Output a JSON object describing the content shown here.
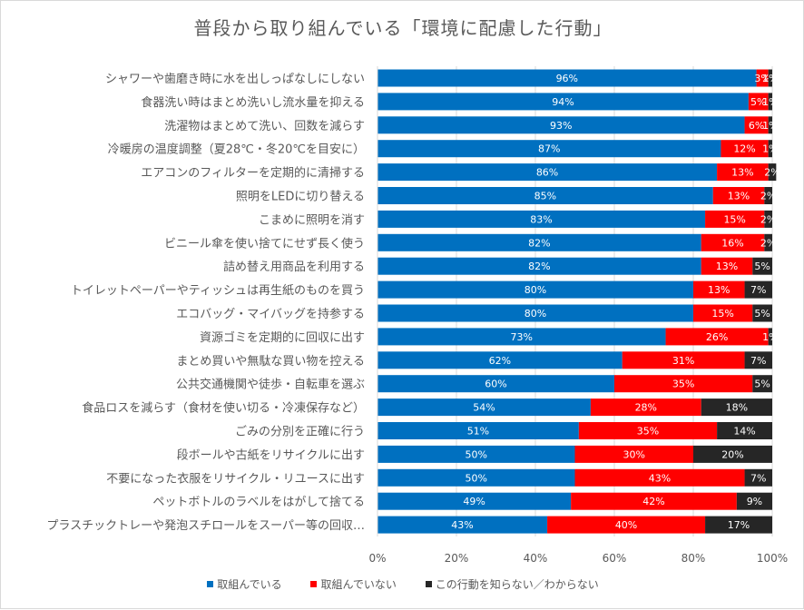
{
  "colors": {
    "series_1": "#0070C0",
    "series_2": "#FF0000",
    "series_3": "#262626",
    "text": "#595959",
    "gridline": "#D9D9D9"
  },
  "chart_data": {
    "type": "bar",
    "orientation": "horizontal",
    "stacked": true,
    "title": "普段から取り組んでいる「環境に配慮した行動」",
    "categories": [
      "シャワーや歯磨き時に水を出しっぱなしにしない",
      "食器洗い時はまとめ洗いし流水量を抑える",
      "洗濯物はまとめて洗い、回数を減らす",
      "冷暖房の温度調整（夏28℃・冬20℃を目安に）",
      "エアコンのフィルターを定期的に清掃する",
      "照明をLEDに切り替える",
      "こまめに照明を消す",
      "ビニール傘を使い捨てにせず長く使う",
      "詰め替え用商品を利用する",
      "トイレットペーパーやティッシュは再生紙のものを買う",
      "エコバッグ・マイバッグを持参する",
      "資源ゴミを定期的に回収に出す",
      "まとめ買いや無駄な買い物を控える",
      "公共交通機関や徒歩・自転車を選ぶ",
      "食品ロスを減らす（食材を使い切る・冷凍保存など）",
      "ごみの分別を正確に行う",
      "段ボールや古紙をリサイクルに出す",
      "不要になった衣服をリサイクル・リユースに出す",
      "ペットボトルのラベルをはがして捨てる",
      "プラスチックトレーや発泡スチロールをスーパー等の回収…"
    ],
    "series": [
      {
        "name": "取組んでいる",
        "values": [
          96,
          94,
          93,
          87,
          86,
          85,
          83,
          82,
          82,
          80,
          80,
          73,
          62,
          60,
          54,
          51,
          50,
          50,
          49,
          43
        ]
      },
      {
        "name": "取組んでいない",
        "values": [
          3,
          5,
          6,
          12,
          13,
          13,
          15,
          16,
          13,
          13,
          15,
          26,
          31,
          35,
          28,
          35,
          30,
          43,
          42,
          40
        ]
      },
      {
        "name": "この行動を知らない／わからない",
        "values": [
          1,
          1,
          1,
          1,
          2,
          2,
          2,
          2,
          5,
          7,
          5,
          1,
          7,
          5,
          18,
          14,
          20,
          7,
          9,
          17
        ]
      }
    ],
    "value_labels": [
      [
        "96%",
        "94%",
        "93%",
        "87%",
        "86%",
        "85%",
        "83%",
        "82%",
        "82%",
        "80%",
        "80%",
        "73%",
        "62%",
        "60%",
        "54%",
        "51%",
        "50%",
        "50%",
        "49%",
        "43%"
      ],
      [
        "3%",
        "5%",
        "6%",
        "12%",
        "13%",
        "13%",
        "15%",
        "16%",
        "13%",
        "13%",
        "15%",
        "26%",
        "31%",
        "35%",
        "28%",
        "35%",
        "30%",
        "43%",
        "42%",
        "40%"
      ],
      [
        "1%",
        "1%",
        "1%",
        "1%",
        "2%",
        "2%",
        "2%",
        "2%",
        "5%",
        "7%",
        "5%",
        "1%",
        "7%",
        "5%",
        "18%",
        "14%",
        "20%",
        "7%",
        "9%",
        "17%"
      ]
    ],
    "xlim": [
      0,
      100
    ],
    "x_ticks": [
      0,
      20,
      40,
      60,
      80,
      100
    ],
    "x_tick_labels": [
      "0%",
      "20%",
      "40%",
      "60%",
      "80%",
      "100%"
    ],
    "grid": true,
    "legend_position": "bottom"
  }
}
